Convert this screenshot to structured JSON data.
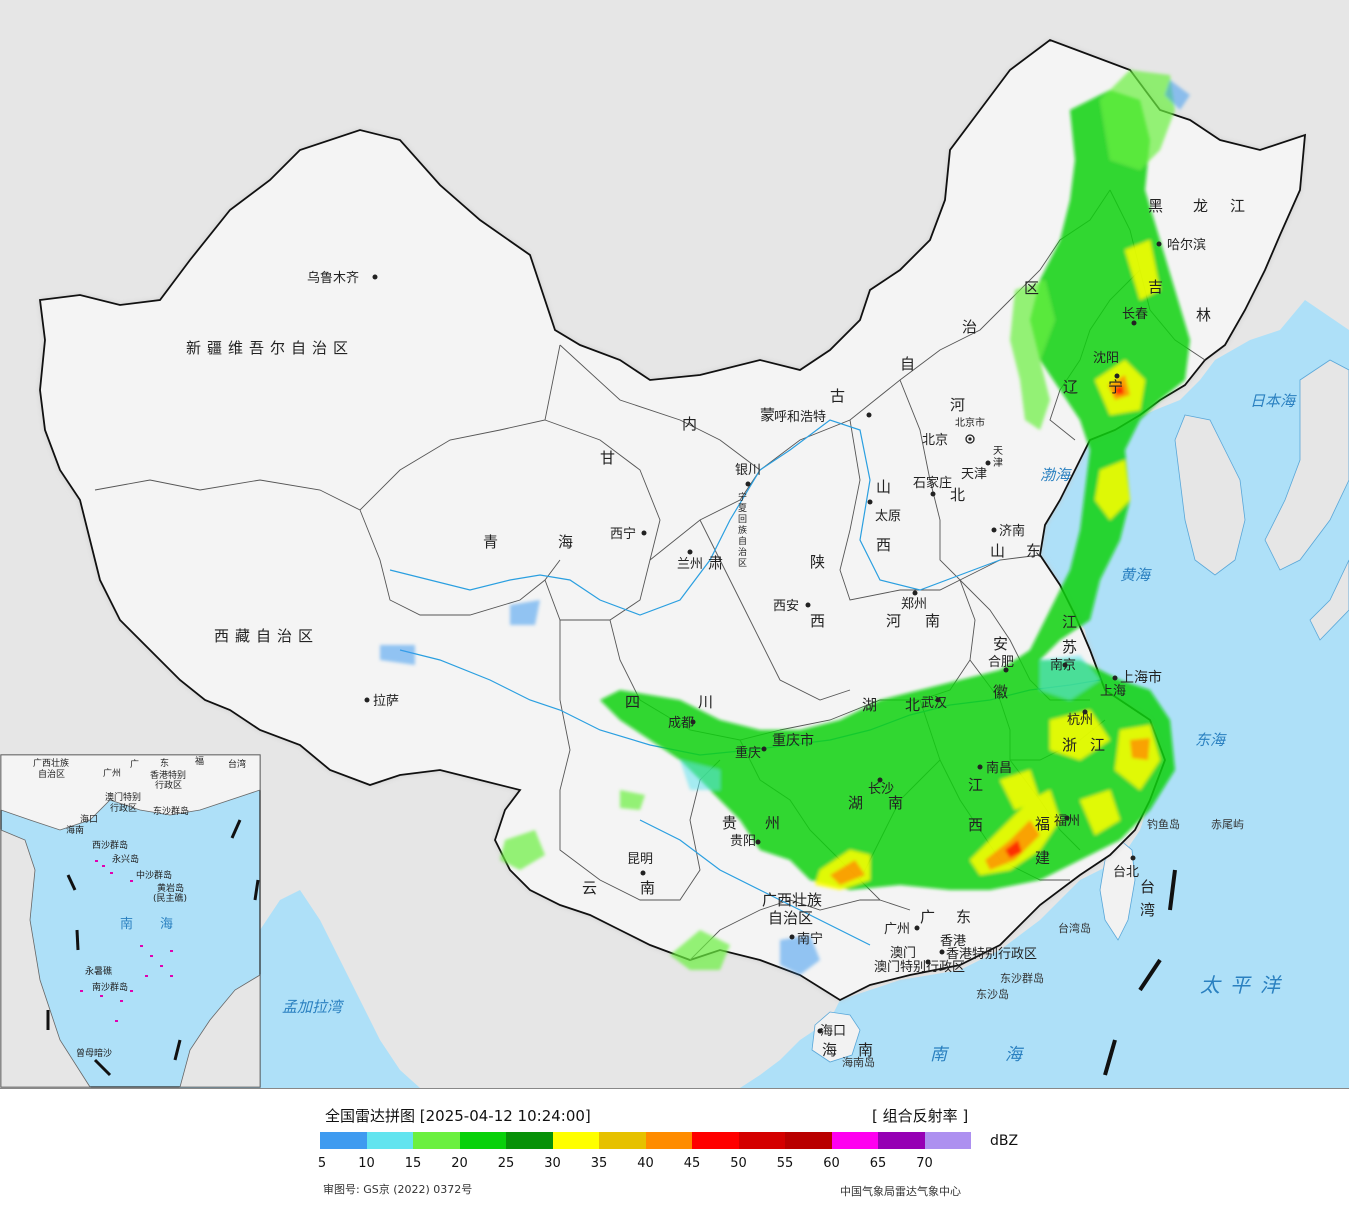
{
  "map": {
    "regions": [
      "新疆维吾尔自治区",
      "西藏自治区",
      "青海",
      "甘肃",
      "内蒙古自治区",
      "四川",
      "云南",
      "广西壮族自治区",
      "广东",
      "湖南",
      "湖北",
      "河南",
      "山东",
      "河北",
      "山西",
      "陕西",
      "黑龙江",
      "吉林",
      "辽宁",
      "安徽",
      "江苏",
      "浙江",
      "江西",
      "福建",
      "贵州",
      "台湾",
      "海南",
      "宁夏回族自治区",
      "重庆市",
      "上海市",
      "天津",
      "北京市",
      "香港特别行政区",
      "澳门特别行政区"
    ],
    "cities": [
      "乌鲁木齐",
      "拉萨",
      "西宁",
      "兰州",
      "银川",
      "呼和浩特",
      "北京",
      "天津",
      "石家庄",
      "太原",
      "济南",
      "郑州",
      "西安",
      "成都",
      "重庆",
      "武汉",
      "合肥",
      "南京",
      "上海",
      "杭州",
      "南昌",
      "长沙",
      "福州",
      "贵阳",
      "昆明",
      "南宁",
      "广州",
      "香港",
      "澳门",
      "海口",
      "台北",
      "哈尔滨",
      "长春",
      "沈阳"
    ],
    "seas": [
      "日本海",
      "渤海",
      "黄海",
      "东海",
      "太平洋",
      "南海",
      "孟加拉湾"
    ],
    "islands": [
      "台湾岛",
      "海南岛",
      "东沙群岛",
      "钓鱼岛",
      "赤尾屿",
      "西沙群岛",
      "中沙群岛",
      "黄岩岛",
      "永暑礁",
      "南沙群岛",
      "曾母暗沙"
    ],
    "labels": {
      "xinjiang": "新疆维吾尔自治区",
      "tibet": "西藏自治区",
      "qinghai": [
        "青",
        "海"
      ],
      "gansu": [
        "甘",
        "肃"
      ],
      "nmg": [
        "内",
        "蒙",
        "古",
        "自",
        "治",
        "区"
      ],
      "hlj": [
        "黑",
        "龙",
        "江"
      ],
      "jilin": [
        "吉",
        "林"
      ],
      "liaoning": [
        "辽",
        "宁"
      ],
      "shandong": [
        "山",
        "东"
      ],
      "hebei": [
        "河",
        "北"
      ],
      "shanxi": [
        "山",
        "西"
      ],
      "shaanxi": [
        "陕",
        "西"
      ],
      "henan": [
        "河",
        "南"
      ],
      "sichuan": [
        "四",
        "川"
      ],
      "hubei": [
        "湖",
        "北"
      ],
      "hunan": [
        "湖",
        "南"
      ],
      "jiangxi": [
        "江",
        "西"
      ],
      "anhui": [
        "安",
        "徽"
      ],
      "jiangsu": [
        "江",
        "苏"
      ],
      "zhejiang": [
        "浙",
        "江"
      ],
      "fujian": [
        "福",
        "建"
      ],
      "guizhou": [
        "贵",
        "州"
      ],
      "yunnan": [
        "云",
        "南"
      ],
      "guangxi": [
        "广西壮族",
        "自治区"
      ],
      "guangdong": [
        "广",
        "东"
      ],
      "hainan": [
        "海",
        "南"
      ],
      "taiwan": [
        "台",
        "湾"
      ],
      "ningxia": [
        "宁",
        "夏",
        "回",
        "族",
        "自",
        "治",
        "区"
      ],
      "chongqing": "重庆市",
      "shanghai": "上海市",
      "beijing_small": "北京市",
      "tianjin_small": [
        "天",
        "津"
      ],
      "hk": "香港特别行政区",
      "macao": "澳门特别行政区",
      "sea_japan": "日本海",
      "sea_bohai": "渤海",
      "sea_yellow": "黄海",
      "sea_east": "东海",
      "pacific": "太平洋",
      "sea_south": [
        "南",
        "海"
      ],
      "bengal": "孟加拉湾",
      "tw_island": "台湾岛",
      "hn_island": "海南岛",
      "dongsha_qd": "东沙群岛",
      "dongsha_d": "东沙岛",
      "diaoyu": "钓鱼岛",
      "chiwei": "赤尾屿"
    },
    "inset": {
      "labels": [
        "广西壮族",
        "自治区",
        "广",
        "东",
        "福",
        "台湾",
        "广州",
        "香港特别",
        "行政区",
        "澳门特别",
        "行政区",
        "海口",
        "海南",
        "东沙群岛",
        "西沙群岛",
        "永兴岛",
        "中沙群岛",
        "黄岩岛",
        "(民主礁)",
        "南",
        "海",
        "永暑礁",
        "南沙群岛",
        "曾母暗沙"
      ]
    }
  },
  "legend": {
    "title": "全国雷达拼图 [2025-04-12 10:24:00]",
    "product": "[ 组合反射率 ]",
    "unit": "dBZ",
    "colors": [
      "#3f9bf0",
      "#62e4ef",
      "#6bf040",
      "#08d10a",
      "#079108",
      "#ffff00",
      "#e6c100",
      "#ff8c00",
      "#ff0000",
      "#d40000",
      "#b90000",
      "#ff00f0",
      "#9600b4",
      "#ad90f0"
    ],
    "ticks": [
      "5",
      "10",
      "15",
      "20",
      "25",
      "30",
      "35",
      "40",
      "45",
      "50",
      "55",
      "60",
      "65",
      "70"
    ],
    "approval": "审图号: GS京 (2022) 0372号",
    "source": "中国气象局雷达气象中心"
  }
}
